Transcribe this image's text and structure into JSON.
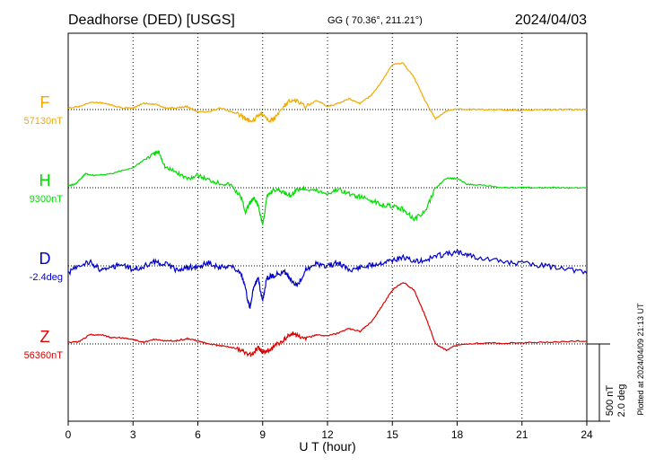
{
  "header": {
    "station": "Deadhorse (DED)  [USGS]",
    "coords": "GG ( 70.36°, 211.21°)",
    "date": "2024/04/03"
  },
  "footer": {
    "plotted": "Plotted at 2024/04/09 21:13 UT"
  },
  "colors": {
    "F": "#f2a900",
    "H": "#00dd00",
    "D": "#0000cc",
    "Z": "#dd0000",
    "grid": "#000000"
  },
  "chart_data": {
    "type": "line",
    "title": "Deadhorse (DED)  [USGS]",
    "xlabel": "U T (hour)",
    "xlim": [
      0,
      24
    ],
    "xticks": [
      "0",
      "3",
      "6",
      "9",
      "12",
      "15",
      "18",
      "21",
      "24"
    ],
    "grid": true,
    "scale_bar": {
      "labels": [
        "500 nT",
        "2.0 deg"
      ],
      "nT": 500,
      "deg": 2.0
    },
    "series": [
      {
        "name": "F",
        "baseline_label": "57130nT",
        "baseline_nT": 57130,
        "x": [
          0,
          0.5,
          1,
          1.5,
          2,
          2.5,
          3,
          3.5,
          4,
          4.5,
          5,
          5.5,
          6,
          6.5,
          7,
          7.5,
          8,
          8.2,
          8.5,
          8.8,
          9,
          9.3,
          9.6,
          10,
          10.3,
          10.6,
          11,
          11.5,
          12,
          12.5,
          13,
          13.5,
          14,
          14.5,
          15,
          15.5,
          16,
          16.5,
          17,
          17.5,
          18,
          19,
          20,
          21,
          22,
          23,
          24
        ],
        "offsets": [
          10,
          20,
          45,
          45,
          30,
          10,
          10,
          40,
          35,
          10,
          10,
          20,
          -15,
          -15,
          10,
          -10,
          -40,
          -60,
          -80,
          -40,
          -30,
          -70,
          -50,
          30,
          60,
          50,
          20,
          60,
          20,
          40,
          70,
          40,
          90,
          180,
          290,
          300,
          210,
          60,
          -60,
          -10,
          5,
          0,
          0,
          -5,
          0,
          0,
          0
        ]
      },
      {
        "name": "H",
        "baseline_label": "9300nT",
        "baseline_nT": 9300,
        "x": [
          0,
          0.3,
          0.6,
          0.8,
          1.2,
          2,
          3,
          3.5,
          4,
          4.2,
          4.5,
          5,
          5.5,
          6,
          6.5,
          7,
          7.5,
          8,
          8.2,
          8.4,
          8.6,
          8.8,
          9,
          9.2,
          9.5,
          10,
          10.3,
          10.6,
          11,
          11.5,
          12,
          12.5,
          13,
          13.5,
          14,
          14.5,
          15,
          15.5,
          16,
          16.5,
          17,
          17.5,
          18,
          18.5,
          19,
          20,
          21,
          22,
          23,
          24
        ],
        "offsets": [
          15,
          20,
          60,
          90,
          80,
          90,
          130,
          180,
          220,
          230,
          130,
          100,
          60,
          80,
          50,
          30,
          20,
          -60,
          -160,
          -100,
          -70,
          -120,
          -240,
          -60,
          -10,
          -30,
          -50,
          -10,
          -5,
          -20,
          -40,
          -10,
          -40,
          -60,
          -80,
          -110,
          -120,
          -140,
          -200,
          -160,
          0,
          60,
          60,
          20,
          20,
          0,
          0,
          0,
          0,
          0
        ]
      },
      {
        "name": "D",
        "baseline_label": "-2.4deg",
        "baseline_deg": -2.4,
        "x": [
          0,
          0.5,
          1,
          1.5,
          2,
          2.5,
          3,
          3.5,
          4,
          4.5,
          5,
          5.5,
          6,
          6.5,
          7,
          7.5,
          8,
          8.2,
          8.4,
          8.6,
          8.8,
          9,
          9.2,
          9.5,
          10,
          10.3,
          10.6,
          11,
          11.5,
          12,
          12.5,
          13,
          13.5,
          14,
          14.5,
          15,
          15.5,
          16,
          16.5,
          17,
          17.5,
          18,
          18.5,
          19,
          20,
          21,
          22,
          23,
          24
        ],
        "offsets": [
          -0.2,
          0.02,
          0.1,
          -0.1,
          -0.05,
          0.06,
          -0.1,
          0.0,
          0.1,
          0.06,
          -0.1,
          -0.05,
          -0.02,
          0.08,
          -0.05,
          0.0,
          -0.2,
          -0.6,
          -1.1,
          -0.5,
          -0.35,
          -0.9,
          -0.3,
          -0.25,
          -0.15,
          -0.35,
          -0.5,
          -0.1,
          0.05,
          0.0,
          0.08,
          -0.1,
          -0.05,
          0.02,
          0.08,
          0.15,
          0.22,
          0.1,
          0.15,
          0.25,
          0.3,
          0.35,
          0.3,
          0.2,
          0.12,
          0.06,
          0.0,
          -0.05,
          -0.2
        ]
      },
      {
        "name": "Z",
        "baseline_label": "56360nT",
        "baseline_nT": 56360,
        "x": [
          0,
          0.5,
          1,
          1.5,
          2,
          2.5,
          3,
          3.5,
          4,
          4.5,
          5,
          5.5,
          6,
          6.5,
          7,
          7.5,
          8,
          8.2,
          8.5,
          8.8,
          9,
          9.3,
          9.6,
          10,
          10.3,
          10.6,
          11,
          11.5,
          12,
          12.5,
          13,
          13.5,
          14,
          14.5,
          15,
          15.5,
          16,
          16.5,
          17,
          17.5,
          18,
          19,
          20,
          21,
          22,
          23,
          24
        ],
        "offsets": [
          10,
          15,
          60,
          60,
          40,
          40,
          30,
          10,
          30,
          20,
          20,
          35,
          20,
          0,
          -10,
          -20,
          -40,
          -60,
          -70,
          -20,
          -50,
          -40,
          -10,
          30,
          70,
          60,
          30,
          60,
          50,
          70,
          100,
          80,
          140,
          240,
          350,
          400,
          350,
          190,
          0,
          -40,
          -5,
          5,
          5,
          8,
          10,
          15,
          20
        ]
      }
    ]
  }
}
